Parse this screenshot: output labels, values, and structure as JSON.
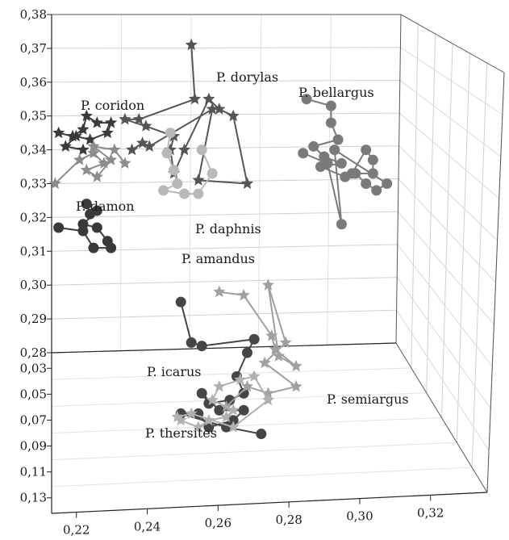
{
  "chart_data": {
    "type": "scatter",
    "projection": "3d",
    "grid": true,
    "axes": {
      "z": {
        "ticks": [
          "0,28",
          "0,29",
          "0,30",
          "0,31",
          "0,32",
          "0,33",
          "0,34",
          "0,35",
          "0,36",
          "0,37",
          "0,38"
        ],
        "range": [
          0.28,
          0.38
        ]
      },
      "depth": {
        "ticks": [
          "0,03",
          "0,05",
          "0,07",
          "0,09",
          "0,11",
          "0,13"
        ],
        "range": [
          0.03,
          0.13
        ]
      },
      "x": {
        "ticks": [
          "0,22",
          "0,24",
          "0,26",
          "0,28",
          "0,30",
          "0,32"
        ],
        "range": [
          0.22,
          0.32
        ]
      }
    },
    "series": [
      {
        "name": "P. coridon",
        "marker": "star",
        "color": "#3a3a3a",
        "points": [
          [
            0.222,
            0.345
          ],
          [
            0.226,
            0.344
          ],
          [
            0.229,
            0.346
          ],
          [
            0.23,
            0.35
          ],
          [
            0.233,
            0.348
          ],
          [
            0.237,
            0.348
          ],
          [
            0.236,
            0.345
          ],
          [
            0.231,
            0.343
          ],
          [
            0.227,
            0.344
          ],
          [
            0.224,
            0.341
          ],
          [
            0.229,
            0.34
          ]
        ]
      },
      {
        "name": "P. damon",
        "marker": "star",
        "color": "#8c8c8c",
        "points": [
          [
            0.221,
            0.33
          ],
          [
            0.228,
            0.337
          ],
          [
            0.232,
            0.339
          ],
          [
            0.235,
            0.336
          ],
          [
            0.23,
            0.334
          ],
          [
            0.233,
            0.332
          ],
          [
            0.237,
            0.337
          ],
          [
            0.232,
            0.341
          ],
          [
            0.238,
            0.34
          ],
          [
            0.241,
            0.336
          ]
        ]
      },
      {
        "name": "P. dorylas",
        "marker": "star",
        "color": "#555555",
        "points": [
          [
            0.26,
            0.371
          ],
          [
            0.261,
            0.355
          ],
          [
            0.245,
            0.349
          ],
          [
            0.241,
            0.349
          ],
          [
            0.247,
            0.347
          ],
          [
            0.255,
            0.344
          ],
          [
            0.254,
            0.34
          ],
          [
            0.255,
            0.333
          ],
          [
            0.258,
            0.34
          ],
          [
            0.265,
            0.355
          ],
          [
            0.268,
            0.352
          ],
          [
            0.272,
            0.35
          ],
          [
            0.276,
            0.33
          ],
          [
            0.262,
            0.331
          ],
          [
            0.266,
            0.352
          ],
          [
            0.248,
            0.341
          ],
          [
            0.246,
            0.342
          ],
          [
            0.243,
            0.34
          ]
        ]
      },
      {
        "name": "P. daphnis",
        "marker": "circle",
        "color": "#b8b8b8",
        "points": [
          [
            0.254,
            0.345
          ],
          [
            0.253,
            0.339
          ],
          [
            0.255,
            0.334
          ],
          [
            0.256,
            0.33
          ],
          [
            0.252,
            0.328
          ],
          [
            0.258,
            0.327
          ],
          [
            0.262,
            0.327
          ],
          [
            0.266,
            0.333
          ],
          [
            0.263,
            0.34
          ]
        ]
      },
      {
        "name": "P. bellargus",
        "marker": "circle",
        "color": "#7a7a7a",
        "points": [
          [
            0.293,
            0.355
          ],
          [
            0.3,
            0.353
          ],
          [
            0.3,
            0.348
          ],
          [
            0.302,
            0.343
          ],
          [
            0.295,
            0.341
          ],
          [
            0.298,
            0.338
          ],
          [
            0.303,
            0.336
          ],
          [
            0.297,
            0.335
          ],
          [
            0.304,
            0.332
          ],
          [
            0.306,
            0.333
          ],
          [
            0.31,
            0.34
          ],
          [
            0.312,
            0.337
          ],
          [
            0.312,
            0.333
          ],
          [
            0.307,
            0.333
          ],
          [
            0.31,
            0.33
          ],
          [
            0.313,
            0.328
          ],
          [
            0.316,
            0.33
          ],
          [
            0.301,
            0.34
          ],
          [
            0.303,
            0.318
          ],
          [
            0.299,
            0.336
          ],
          [
            0.292,
            0.339
          ]
        ]
      },
      {
        "name": "P. amandus",
        "marker": "circle",
        "color": "#3a3a3a",
        "points": [
          [
            0.23,
            0.324
          ],
          [
            0.231,
            0.321
          ],
          [
            0.233,
            0.322
          ],
          [
            0.229,
            0.318
          ],
          [
            0.233,
            0.317
          ],
          [
            0.236,
            0.313
          ],
          [
            0.237,
            0.311
          ],
          [
            0.232,
            0.311
          ],
          [
            0.229,
            0.316
          ],
          [
            0.222,
            0.317
          ]
        ]
      },
      {
        "name": "P. icarus",
        "marker": "circle",
        "color": "#454545",
        "points": [
          [
            0.257,
            0.295
          ],
          [
            0.26,
            0.283
          ],
          [
            0.263,
            0.282
          ],
          [
            0.278,
            0.284
          ],
          [
            0.276,
            0.28
          ],
          [
            0.273,
            0.273
          ],
          [
            0.275,
            0.268
          ],
          [
            0.271,
            0.266
          ],
          [
            0.265,
            0.265
          ],
          [
            0.263,
            0.268
          ],
          [
            0.268,
            0.263
          ],
          [
            0.275,
            0.263
          ],
          [
            0.272,
            0.26
          ],
          [
            0.265,
            0.258
          ],
          [
            0.262,
            0.262
          ],
          [
            0.257,
            0.262
          ],
          [
            0.27,
            0.258
          ],
          [
            0.28,
            0.256
          ]
        ]
      },
      {
        "name": "P. semiargus",
        "marker": "star",
        "color": "#a0a0a0",
        "points": [
          [
            0.268,
            0.298
          ],
          [
            0.275,
            0.297
          ],
          [
            0.283,
            0.285
          ],
          [
            0.284,
            0.281
          ],
          [
            0.29,
            0.276
          ],
          [
            0.285,
            0.279
          ],
          [
            0.282,
            0.3
          ],
          [
            0.287,
            0.283
          ],
          [
            0.281,
            0.277
          ],
          [
            0.29,
            0.27
          ],
          [
            0.282,
            0.268
          ],
          [
            0.276,
            0.27
          ],
          [
            0.27,
            0.264
          ]
        ]
      },
      {
        "name": "P. thersites",
        "marker": "star",
        "color": "#b0b0b0",
        "points": [
          [
            0.257,
            0.26
          ],
          [
            0.262,
            0.258
          ],
          [
            0.265,
            0.26
          ],
          [
            0.27,
            0.261
          ],
          [
            0.272,
            0.263
          ],
          [
            0.266,
            0.266
          ],
          [
            0.268,
            0.27
          ],
          [
            0.274,
            0.272
          ],
          [
            0.278,
            0.273
          ],
          [
            0.282,
            0.266
          ],
          [
            0.272,
            0.258
          ],
          [
            0.26,
            0.262
          ],
          [
            0.256,
            0.261
          ]
        ]
      }
    ]
  }
}
